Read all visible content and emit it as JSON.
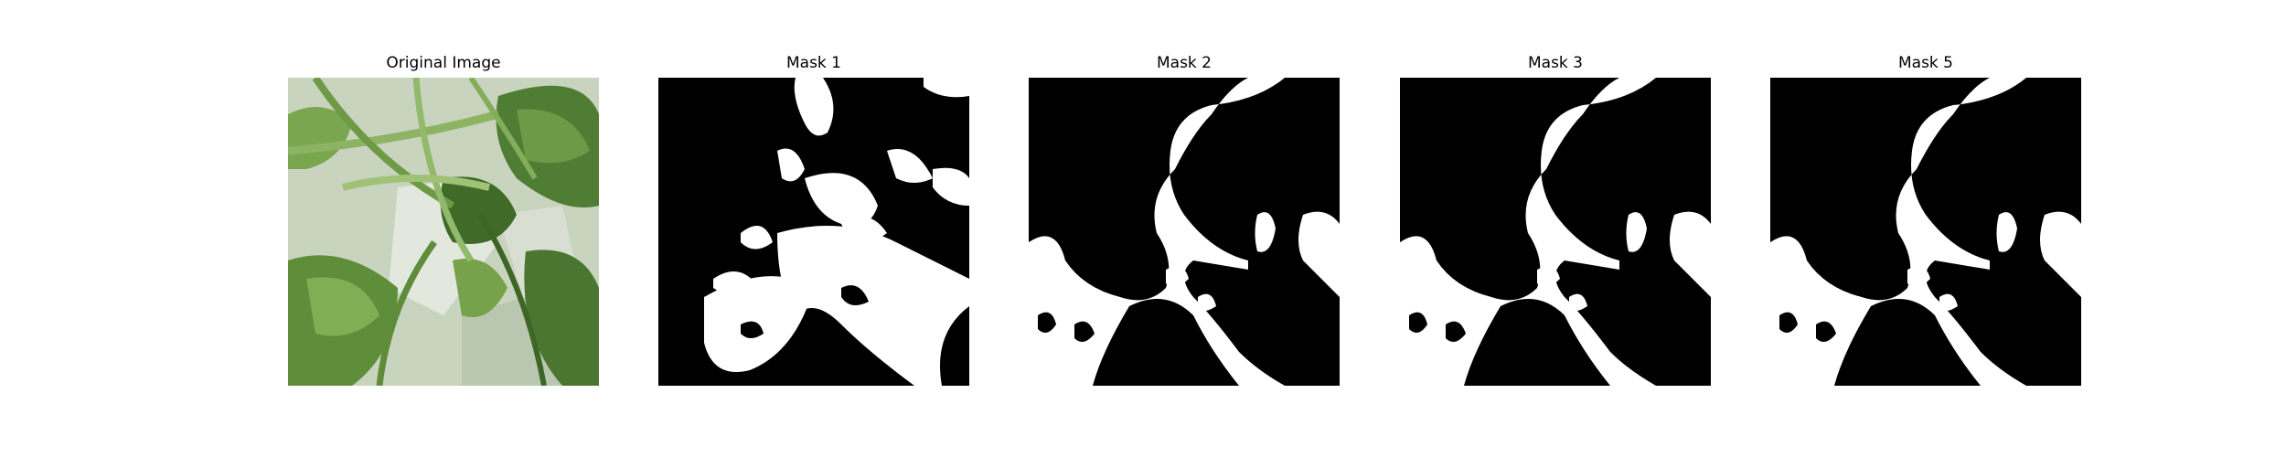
{
  "figure": {
    "panels": [
      {
        "title": "Original Image",
        "kind": "photo",
        "subject": "green plant leaves and stems"
      },
      {
        "title": "Mask 1",
        "kind": "binary-mask"
      },
      {
        "title": "Mask 2",
        "kind": "binary-mask"
      },
      {
        "title": "Mask 3",
        "kind": "binary-mask"
      },
      {
        "title": "Mask 5",
        "kind": "binary-mask"
      }
    ]
  },
  "colors": {
    "mask_background": "#000000",
    "mask_foreground": "#ffffff",
    "leaf_dark": "#3e6b2a",
    "leaf_mid": "#6f9a45",
    "leaf_light": "#a7c47a",
    "background_light": "#dfe5d9"
  }
}
